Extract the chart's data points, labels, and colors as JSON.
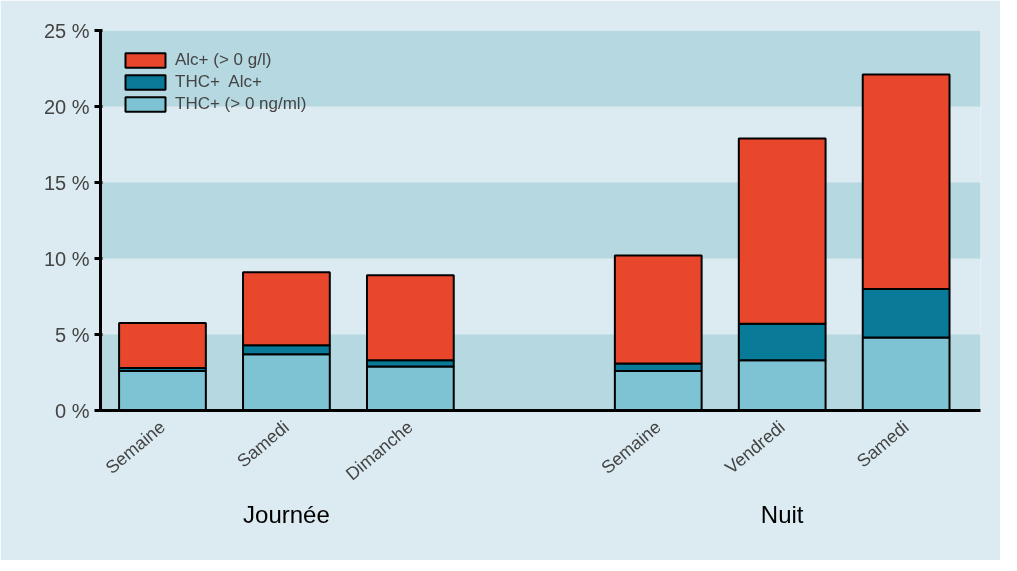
{
  "chart_data": {
    "type": "bar",
    "stacked": true,
    "categories": [
      "Semaine",
      "Samedi",
      "Dimanche",
      null,
      "Semaine",
      "Vendredi",
      "Samedi"
    ],
    "series": [
      {
        "name": "THC+ (> 0 ng/ml)",
        "color": "#7ec3d3",
        "values": [
          2.6,
          3.7,
          2.9,
          null,
          2.6,
          3.3,
          4.8
        ]
      },
      {
        "name": "THC+  Alc+",
        "color": "#0a7a99",
        "values": [
          0.2,
          0.6,
          0.4,
          null,
          0.5,
          2.4,
          3.2
        ]
      },
      {
        "name": "Alc+ (> 0 g/l)",
        "color": "#e8472b",
        "values": [
          2.95,
          4.8,
          5.6,
          null,
          7.1,
          12.2,
          14.1
        ]
      }
    ],
    "ylim": [
      0,
      25
    ],
    "yticks": [
      {
        "value": 0,
        "label": "0 %"
      },
      {
        "value": 5,
        "label": "5 %"
      },
      {
        "value": 10,
        "label": "10 %"
      },
      {
        "value": 15,
        "label": "15 %"
      },
      {
        "value": 20,
        "label": "20 %"
      },
      {
        "value": 25,
        "label": "25 %"
      }
    ],
    "annotations": [
      "Journée",
      "Nuit"
    ],
    "bands": [
      {
        "axis": "y",
        "from": 0,
        "to": 5,
        "color": "#b5d8e1"
      },
      {
        "axis": "y",
        "from": 10,
        "to": 15,
        "color": "#b5d8e1"
      },
      {
        "axis": "y",
        "from": 20,
        "to": 25,
        "color": "#b5d8e1"
      }
    ],
    "legend": "top left"
  }
}
